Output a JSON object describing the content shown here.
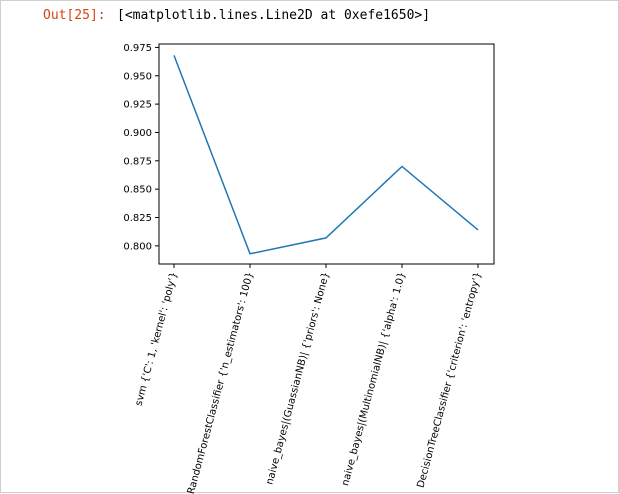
{
  "output": {
    "prompt": "Out[25]:",
    "text": "[<matplotlib.lines.Line2D at 0xefe1650>]"
  },
  "chart_data": {
    "type": "line",
    "categories": [
      "svm {'C': 1, 'kernel': 'poly'}",
      "RandomForestClassifier {'n_estimators': 100}",
      "naive_bayes|(GuassianNB)| {'priors': None}",
      "naive_bayes|(MultinomialNB)| {'alpha': 1.0}",
      "DecisionTreeClassifier {'criterion': 'entropy'}"
    ],
    "values": [
      0.968,
      0.793,
      0.807,
      0.87,
      0.814
    ],
    "yticks": [
      0.8,
      0.825,
      0.85,
      0.875,
      0.9,
      0.925,
      0.95,
      0.975
    ],
    "ytick_labels": [
      "0.800",
      "0.825",
      "0.850",
      "0.875",
      "0.900",
      "0.925",
      "0.950",
      "0.975"
    ],
    "ylim": [
      0.784,
      0.978
    ],
    "line_color": "#1f77b4",
    "grid": false
  }
}
